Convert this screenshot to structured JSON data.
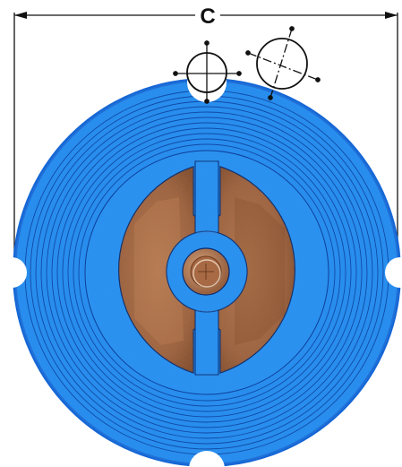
{
  "dimension": {
    "label": "C"
  },
  "colors": {
    "disc": "#1f8ff5",
    "disc_edge": "#1466d6",
    "groove": "#0d3f9a",
    "plate": "#9a5d3a",
    "plate_light": "#b5784f",
    "hub": "#a86a44",
    "line": "#111111",
    "background": "#ffffff"
  },
  "icons": [
    "dimension-arrow-icon",
    "bolt-hole-centerline-icon"
  ]
}
